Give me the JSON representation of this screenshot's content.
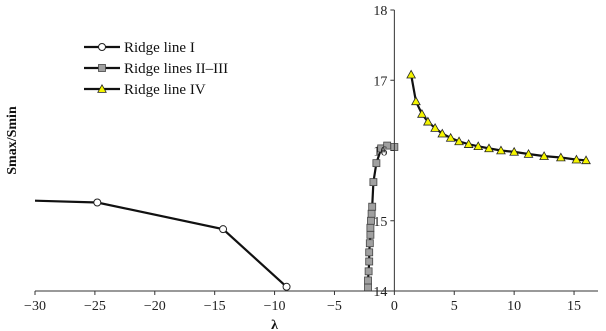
{
  "chart_data": {
    "type": "line",
    "title": "",
    "xlabel": "λ",
    "ylabel": "Smax/Smin",
    "xlim": [
      -30,
      17
    ],
    "ylim": [
      14,
      18
    ],
    "xticks": [
      -30,
      -25,
      -20,
      -15,
      -10,
      -5,
      0,
      5,
      10,
      15
    ],
    "yticks": [
      15,
      16,
      17,
      18
    ],
    "ytick_labels": [
      "15",
      "16",
      "17",
      "18"
    ],
    "y_axis_at_x": 0,
    "grid": false,
    "legend_position": "top-left",
    "series": [
      {
        "name": "Ridge line I",
        "marker": "circle",
        "marker_fill": "#ffffff",
        "x": [
          -33,
          -24.8,
          -14.3,
          -9.0
        ],
        "y": [
          15.3,
          15.26,
          14.88,
          14.06
        ]
      },
      {
        "name": "Ridge lines II–III",
        "marker": "square",
        "marker_fill": "#a0a0a0",
        "x": [
          -2.2,
          -2.2,
          -2.15,
          -2.1,
          -2.1,
          -2.05,
          -2.0,
          -2.0,
          -1.95,
          -1.9,
          -1.85,
          -1.75,
          -1.5,
          -1.1,
          -0.6,
          0.0
        ],
        "y": [
          14.05,
          14.15,
          14.28,
          14.42,
          14.55,
          14.68,
          14.8,
          14.9,
          15.0,
          15.1,
          15.2,
          15.55,
          15.82,
          16.03,
          16.07,
          16.05
        ]
      },
      {
        "name": "Ridge line IV",
        "marker": "triangle",
        "marker_fill": "#f5f500",
        "x": [
          1.4,
          1.8,
          2.3,
          2.8,
          3.4,
          4.0,
          4.7,
          5.4,
          6.2,
          7.0,
          7.9,
          8.9,
          10.0,
          11.2,
          12.5,
          13.9,
          15.2,
          16.0
        ],
        "y": [
          17.08,
          16.7,
          16.52,
          16.41,
          16.32,
          16.24,
          16.18,
          16.13,
          16.09,
          16.06,
          16.03,
          16.0,
          15.98,
          15.95,
          15.92,
          15.9,
          15.87,
          15.86
        ]
      }
    ]
  }
}
